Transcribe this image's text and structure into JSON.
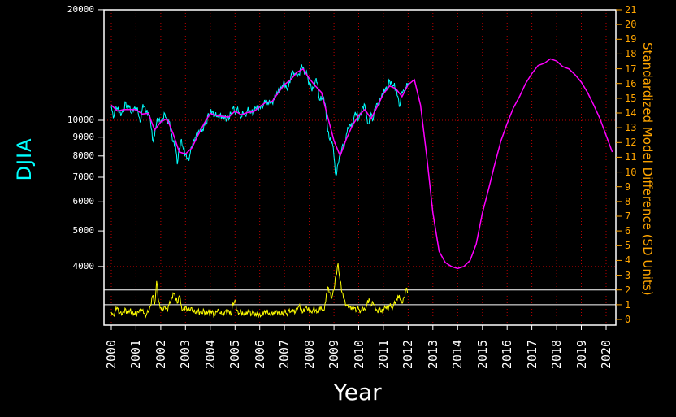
{
  "chart_data": {
    "type": "line",
    "title": "",
    "xlabel": "Year",
    "ylabel_left": "DJIA",
    "ylabel_right": "Standardized Model Difference (SD Units)",
    "x_ticks": [
      2000,
      2001,
      2002,
      2003,
      2004,
      2005,
      2006,
      2007,
      2008,
      2009,
      2010,
      2011,
      2012,
      2013,
      2014,
      2015,
      2016,
      2017,
      2018,
      2019,
      2020
    ],
    "left_axis": {
      "scale": "log",
      "ticks": [
        20000,
        10000,
        9000,
        8000,
        7000,
        6000,
        5000,
        4000
      ],
      "range": [
        2770,
        20000
      ],
      "color": "#FFFFFF"
    },
    "right_axis": {
      "scale": "linear",
      "ticks": [
        0,
        1,
        2,
        3,
        4,
        5,
        6,
        7,
        8,
        9,
        10,
        11,
        12,
        13,
        14,
        15,
        16,
        17,
        18,
        19,
        20,
        21
      ],
      "range": [
        0,
        21
      ],
      "color": "#FFA500"
    },
    "threshold_lines_sd": [
      1,
      2
    ],
    "grid": {
      "style": "dotted",
      "color": "#C00000",
      "vertical_at_years": true,
      "horizontal_left": [
        10000,
        4000
      ]
    },
    "series": [
      {
        "id": "djia",
        "name": "DJIA",
        "color": "#00FFFF",
        "axis": "left",
        "x_start": 2000.0,
        "x_step": 0.083333,
        "width": 1,
        "jitter": 5,
        "values": [
          10940,
          10128,
          10922,
          10734,
          10522,
          10448,
          10522,
          11215,
          10651,
          10971,
          10414,
          10788,
          10887,
          10495,
          9879,
          10735,
          10912,
          10502,
          10523,
          9950,
          8848,
          9075,
          9852,
          10022,
          9920,
          10106,
          10404,
          9946,
          9925,
          9243,
          8737,
          8664,
          7592,
          8397,
          8896,
          8342,
          8054,
          7891,
          7992,
          8480,
          8850,
          8985,
          9234,
          9416,
          9275,
          9801,
          9782,
          10454,
          10488,
          10584,
          10358,
          10226,
          10188,
          10435,
          10140,
          10174,
          10080,
          10027,
          10428,
          10783,
          10490,
          10766,
          10504,
          10193,
          10467,
          10275,
          10641,
          10482,
          10569,
          10440,
          10806,
          10718,
          10865,
          10993,
          11109,
          11367,
          11168,
          11150,
          11186,
          11381,
          11679,
          12080,
          12222,
          12463,
          12622,
          12269,
          12354,
          13063,
          13628,
          13409,
          13212,
          13358,
          13896,
          13930,
          13372,
          13265,
          12650,
          12266,
          12263,
          12820,
          12638,
          11350,
          11378,
          11544,
          10851,
          9325,
          8829,
          8776,
          8001,
          7063,
          7609,
          8168,
          8500,
          8447,
          9172,
          9496,
          9712,
          9713,
          10345,
          10428,
          10067,
          10325,
          10857,
          11009,
          10137,
          9774,
          10466,
          10015,
          10788,
          11118,
          11006,
          11578,
          11892,
          12226,
          12320,
          12811,
          12570,
          12414,
          12143,
          11614,
          10913,
          11955,
          12046,
          12218,
          12633
        ]
      },
      {
        "id": "model",
        "name": "Model",
        "color": "#FF00FF",
        "axis": "left",
        "x_start": 2000.0,
        "x_step": 0.25,
        "width": 1.5,
        "jitter": 0,
        "values": [
          11000,
          10600,
          10700,
          10700,
          10700,
          10400,
          10450,
          9400,
          9900,
          10100,
          9200,
          8200,
          8100,
          8400,
          9100,
          9800,
          10450,
          10300,
          10250,
          10200,
          10600,
          10350,
          10500,
          10550,
          10900,
          11200,
          11250,
          11900,
          12500,
          12900,
          13500,
          13800,
          13000,
          12400,
          11900,
          10200,
          8800,
          8000,
          8900,
          9700,
          10300,
          10700,
          10100,
          10900,
          11800,
          12400,
          12200,
          11600,
          12500,
          12900,
          11000,
          8000,
          5600,
          4400,
          4100,
          4000,
          3950,
          4000,
          4150,
          4600,
          5600,
          6500,
          7600,
          8800,
          9800,
          10800,
          11600,
          12600,
          13400,
          14100,
          14300,
          14700,
          14500,
          14000,
          13800,
          13300,
          12700,
          11900,
          11000,
          10100,
          9100,
          8200
        ]
      },
      {
        "id": "sd-difference",
        "name": "Standardized Model Difference",
        "color": "#FFFF00",
        "axis": "right",
        "x_start": 2000.0,
        "x_step": 0.083333,
        "width": 1,
        "jitter": 4,
        "values": [
          0.5,
          0.3,
          0.6,
          0.8,
          0.4,
          0.3,
          0.5,
          0.7,
          0.4,
          0.6,
          0.5,
          0.4,
          0.3,
          0.5,
          0.7,
          0.6,
          0.4,
          0.3,
          0.5,
          0.9,
          1.6,
          1.0,
          2.6,
          1.2,
          0.8,
          0.6,
          0.9,
          0.7,
          1.0,
          1.3,
          1.8,
          1.5,
          1.1,
          1.6,
          0.9,
          0.7,
          0.9,
          0.7,
          0.6,
          0.8,
          0.5,
          0.4,
          0.6,
          0.5,
          0.4,
          0.6,
          0.3,
          0.5,
          0.4,
          0.6,
          0.3,
          0.5,
          0.7,
          0.4,
          0.3,
          0.5,
          0.4,
          0.6,
          0.3,
          1.1,
          1.3,
          0.6,
          0.4,
          0.5,
          0.3,
          0.5,
          0.4,
          0.6,
          0.3,
          0.5,
          0.4,
          0.3,
          0.4,
          0.3,
          0.5,
          0.6,
          0.4,
          0.3,
          0.5,
          0.4,
          0.6,
          0.5,
          0.3,
          0.4,
          0.5,
          0.4,
          0.6,
          0.5,
          0.7,
          0.4,
          0.8,
          0.9,
          0.6,
          0.5,
          0.8,
          0.7,
          0.6,
          0.5,
          0.7,
          0.6,
          0.5,
          0.8,
          0.7,
          0.6,
          1.2,
          2.2,
          1.8,
          1.5,
          2.0,
          3.0,
          3.8,
          2.6,
          1.8,
          1.4,
          1.0,
          0.8,
          0.9,
          0.7,
          0.8,
          0.6,
          0.7,
          0.6,
          0.8,
          0.7,
          1.0,
          1.4,
          0.9,
          1.1,
          0.8,
          0.6,
          0.7,
          0.5,
          0.6,
          0.8,
          0.7,
          0.9,
          0.8,
          1.0,
          1.2,
          1.6,
          1.4,
          1.1,
          1.5,
          2.1,
          1.8
        ]
      }
    ]
  }
}
